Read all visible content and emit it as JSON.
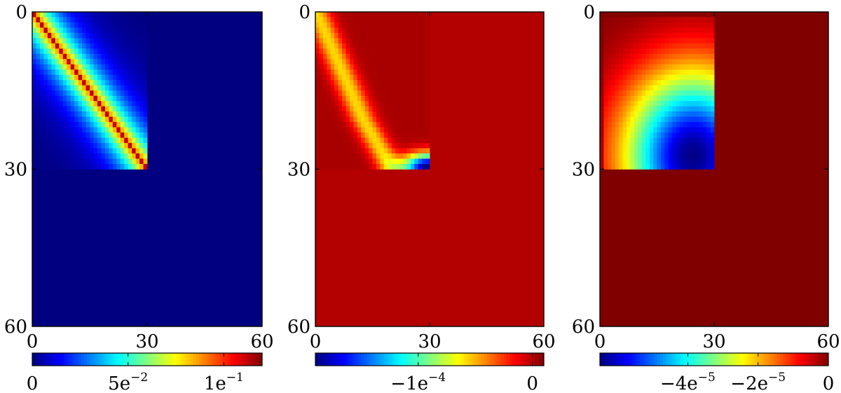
{
  "chart_data": [
    {
      "type": "heatmap",
      "colormap": "jet",
      "grid": false,
      "matrix_size": [
        60,
        60
      ],
      "nonzero_block": {
        "rows": [
          0,
          30
        ],
        "cols": [
          0,
          30
        ]
      },
      "pattern": "banded diagonal peaked at 1e-1, decaying away from the diagonal; zero elsewhere",
      "x_ticks": [
        "0",
        "30",
        "60"
      ],
      "y_ticks": [
        "0",
        "30",
        "60"
      ],
      "value_range": [
        0,
        0.12
      ],
      "colorbar": {
        "position": "bottom",
        "ticks": [
          {
            "value": 0,
            "base": "0",
            "exp": ""
          },
          {
            "value": 0.05,
            "base": "5e",
            "exp": "−2"
          },
          {
            "value": 0.1,
            "base": "1e",
            "exp": "−1"
          }
        ]
      }
    },
    {
      "type": "heatmap",
      "colormap": "jet",
      "grid": false,
      "matrix_size": [
        60,
        60
      ],
      "nonzero_block": {
        "rows": [
          0,
          30
        ],
        "cols": [
          0,
          30
        ]
      },
      "pattern": "mostly near 0; negative band from top-left toward the bottom-right of the block, most negative (about −1.9e-4) at the block's bottom-right corner",
      "x_ticks": [
        "0",
        "30",
        "60"
      ],
      "y_ticks": [
        "0",
        "30",
        "60"
      ],
      "value_range": [
        -0.00019,
        1e-05
      ],
      "colorbar": {
        "position": "bottom",
        "ticks": [
          {
            "value": -0.0001,
            "base": "−1e",
            "exp": "−4"
          },
          {
            "value": 0,
            "base": "0",
            "exp": ""
          }
        ]
      }
    },
    {
      "type": "heatmap",
      "colormap": "jet",
      "grid": false,
      "matrix_size": [
        60,
        60
      ],
      "nonzero_block": {
        "rows": [
          0,
          30
        ],
        "cols": [
          0,
          30
        ]
      },
      "pattern": "0 at the top/left edges of the block, decreasing toward the lower-right interior, minimum about −6.5e-5 near row 27, col 25",
      "x_ticks": [
        "0",
        "30",
        "60"
      ],
      "y_ticks": [
        "0",
        "30",
        "60"
      ],
      "value_range": [
        -6.5e-05,
        0
      ],
      "colorbar": {
        "position": "bottom",
        "ticks": [
          {
            "value": -4e-05,
            "base": "−4e",
            "exp": "−5"
          },
          {
            "value": -2e-05,
            "base": "−2e",
            "exp": "−5"
          },
          {
            "value": 0,
            "base": "0",
            "exp": ""
          }
        ]
      }
    }
  ]
}
